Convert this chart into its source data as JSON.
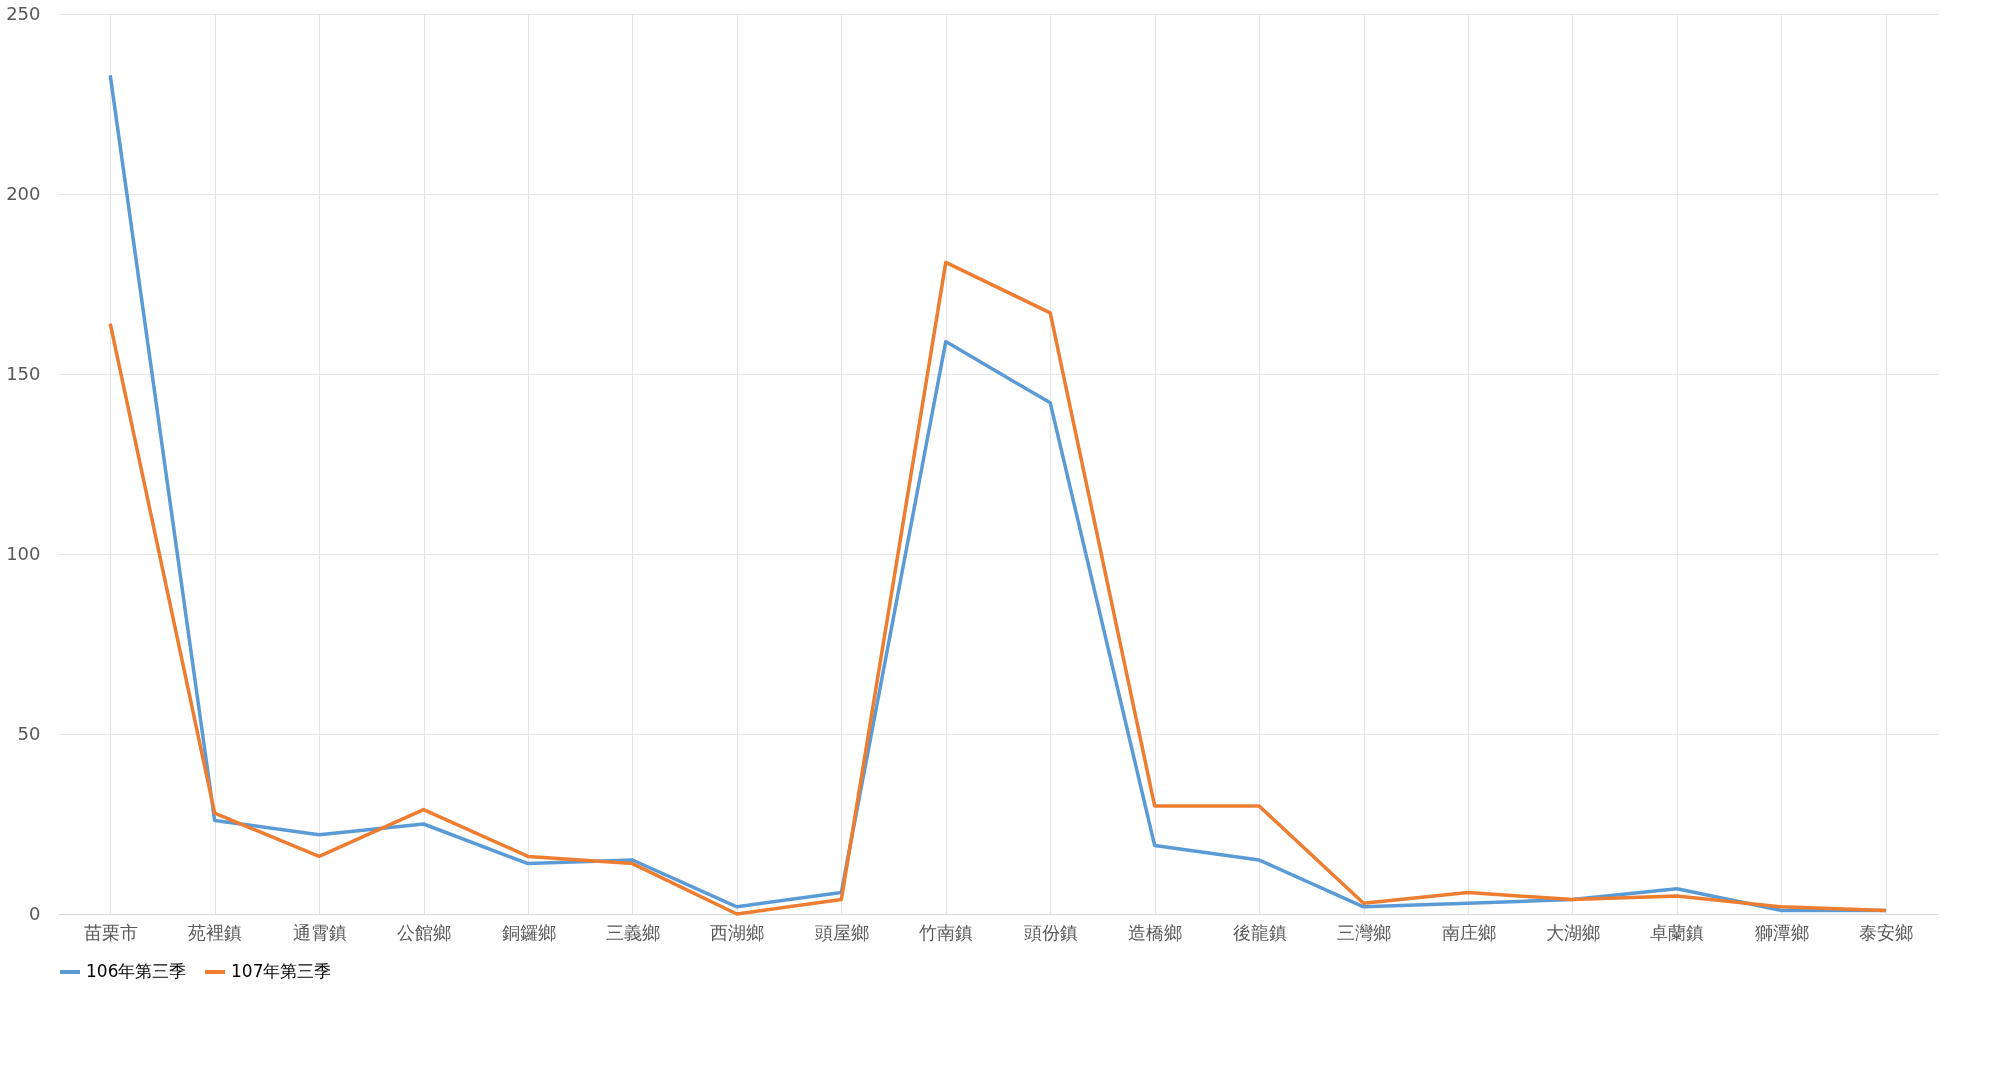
{
  "chart_data": {
    "type": "line",
    "categories": [
      "苗栗市",
      "苑裡鎮",
      "通霄鎮",
      "公館鄉",
      "銅鑼鄉",
      "三義鄉",
      "西湖鄉",
      "頭屋鄉",
      "竹南鎮",
      "頭份鎮",
      "造橋鄉",
      "後龍鎮",
      "三灣鄉",
      "南庄鄉",
      "大湖鄉",
      "卓蘭鎮",
      "獅潭鄉",
      "泰安鄉"
    ],
    "series": [
      {
        "name": "106年第三季",
        "color": "#5b9bd5",
        "values": [
          233,
          26,
          22,
          25,
          14,
          15,
          2,
          6,
          159,
          142,
          19,
          15,
          2,
          3,
          4,
          7,
          1,
          1
        ]
      },
      {
        "name": "107年第三季",
        "color": "#ed7d31",
        "values": [
          164,
          28,
          16,
          29,
          16,
          14,
          0,
          4,
          181,
          167,
          30,
          30,
          3,
          6,
          4,
          5,
          2,
          1
        ]
      }
    ],
    "ylim": [
      0,
      250
    ],
    "yticks": [
      0,
      50,
      100,
      150,
      200,
      250
    ],
    "grid": true,
    "legend": "bottom",
    "marker": "none",
    "line_style": "solid"
  }
}
